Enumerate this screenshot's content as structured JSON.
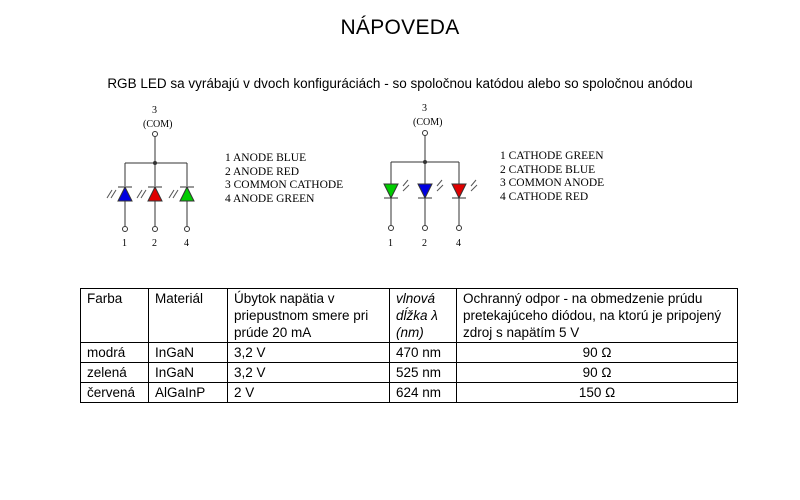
{
  "page": {
    "title": "NÁPOVEDA",
    "subtitle": "RGB LED sa vyrábajú v dvoch konfiguráciách - so spoločnou katódou alebo so spoločnou anódou"
  },
  "diagram_left": {
    "pin_top": "3",
    "com": "(COM)",
    "pins": [
      "1",
      "2",
      "4"
    ],
    "led_colors": [
      "#0000e0",
      "#e00000",
      "#00cc00"
    ],
    "legend": [
      "1 ANODE BLUE",
      "2 ANODE RED",
      "3 COMMON CATHODE",
      "4 ANODE GREEN"
    ]
  },
  "diagram_right": {
    "pin_top": "3",
    "com": "(COM)",
    "pins": [
      "1",
      "2",
      "4"
    ],
    "led_colors": [
      "#00cc00",
      "#0000e0",
      "#e00000"
    ],
    "legend": [
      "1 CATHODE GREEN",
      "2 CATHODE BLUE",
      "3 COMMON ANODE",
      "4 CATHODE RED"
    ]
  },
  "table": {
    "headers": {
      "color": "Farba",
      "material": "Materiál",
      "voltage": "Úbytok napätia v priepustnom smere pri prúde 20 mA",
      "wavelength": "vlnová dĺžka λ (nm)",
      "resistor": "Ochranný odpor - na obmedzenie prúdu pretekajúceho diódou, na ktorú je pripojený zdroj s napätím 5 V"
    },
    "rows": [
      {
        "color": "modrá",
        "material": "InGaN",
        "voltage": "3,2 V",
        "wavelength": "470 nm",
        "resistor": "90 Ω"
      },
      {
        "color": "zelená",
        "material": "InGaN",
        "voltage": "3,2 V",
        "wavelength": "525 nm",
        "resistor": "90 Ω"
      },
      {
        "color": "červená",
        "material": "AlGaInP",
        "voltage": "2 V",
        "wavelength": "624 nm",
        "resistor": "150 Ω"
      }
    ]
  }
}
